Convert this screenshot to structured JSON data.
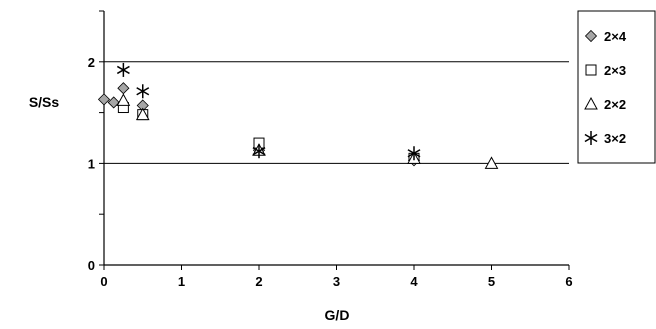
{
  "chart_data": {
    "type": "scatter",
    "title": "",
    "xlabel": "G/D",
    "ylabel": "S/Ss",
    "xlim": [
      0,
      6
    ],
    "ylim": [
      0,
      2.5
    ],
    "xticks": [
      "0",
      "1",
      "2",
      "3",
      "4",
      "5",
      "6"
    ],
    "yticks": [
      "0",
      "1",
      "2"
    ],
    "grid": "horizontal lines at y=1 and y=2",
    "legend_position": "right",
    "series": [
      {
        "name": "2×4",
        "marker": "diamond",
        "color": "#a6a6a6",
        "points": [
          [
            0,
            1.63
          ],
          [
            0.125,
            1.6
          ],
          [
            0.25,
            1.74
          ],
          [
            0.5,
            1.57
          ],
          [
            2,
            1.13
          ],
          [
            4,
            1.03
          ]
        ]
      },
      {
        "name": "2×3",
        "marker": "square",
        "color": "#ffffff",
        "points": [
          [
            0.25,
            1.55
          ],
          [
            0.5,
            1.48
          ],
          [
            2,
            1.2
          ],
          [
            4,
            1.05
          ]
        ]
      },
      {
        "name": "2×2",
        "marker": "triangle",
        "color": "#ffffff",
        "points": [
          [
            0.25,
            1.62
          ],
          [
            0.5,
            1.48
          ],
          [
            2,
            1.13
          ],
          [
            4,
            1.05
          ],
          [
            5,
            1.0
          ]
        ]
      },
      {
        "name": "3×2",
        "marker": "star",
        "color": "#000000",
        "points": [
          [
            0.25,
            1.92
          ],
          [
            0.5,
            1.71
          ],
          [
            2,
            1.12
          ],
          [
            4,
            1.1
          ]
        ]
      }
    ]
  }
}
